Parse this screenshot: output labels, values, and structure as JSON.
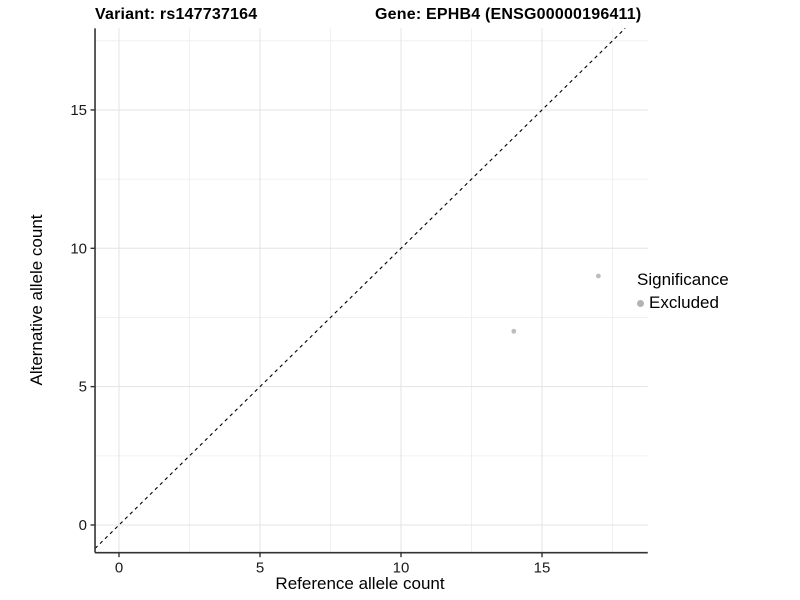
{
  "chart_data": {
    "type": "scatter",
    "title_left": "Variant: rs147737164",
    "title_right": "Gene: EPHB4 (ENSG00000196411)",
    "xlabel": "Reference allele count",
    "ylabel": "Alternative allele count",
    "x_ticks": [
      0,
      5,
      10,
      15
    ],
    "y_ticks": [
      0,
      5,
      10,
      15
    ],
    "x_minor_gridlines": [
      2.5,
      7.5,
      12.5,
      17.5
    ],
    "y_minor_gridlines": [
      2.5,
      7.5,
      12.5,
      17.5
    ],
    "xlim": [
      -0.85,
      18.75
    ],
    "ylim": [
      -1.0,
      17.95
    ],
    "grid": "major and minor, light gray on white",
    "series": [
      {
        "name": "Excluded",
        "points": [
          {
            "x": 14,
            "y": 7
          },
          {
            "x": 17,
            "y": 9
          }
        ],
        "color": "#bdbdbd",
        "point_radius": 2.4
      }
    ],
    "reference_line": {
      "type": "identity y=x",
      "style": "dashed",
      "color": "#000000"
    },
    "legend": {
      "position": "right",
      "title": "Significance",
      "items": [
        {
          "label": "Excluded",
          "color": "#b3b3b3",
          "icon": "point-icon"
        }
      ]
    },
    "colors": {
      "axis_line": "#333333",
      "tick_mark": "#333333",
      "tick_label": "#1a1a1a",
      "grid_major": "#e3e3e3",
      "grid_minor": "#f0f0f0",
      "background": "#ffffff"
    }
  }
}
